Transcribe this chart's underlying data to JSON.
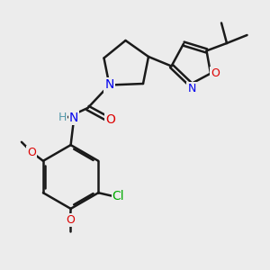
{
  "bg_color": "#ececec",
  "atom_colors": {
    "N": "#0000ee",
    "O": "#dd0000",
    "Cl": "#00aa00",
    "C": "#1a1a1a",
    "H": "#5599aa"
  },
  "bond_color": "#1a1a1a",
  "bond_width": 1.8,
  "font_size": 9,
  "fig_size": [
    3.0,
    3.0
  ],
  "dpi": 100
}
